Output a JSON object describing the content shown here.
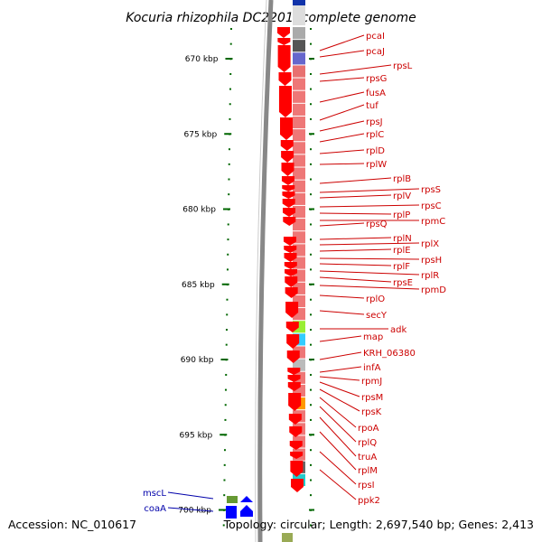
{
  "title": "Kocuria rhizophila DC2201, complete genome",
  "accession": "Accession: NC_010617",
  "meta": "Topology: circular; Length: 2,697,540 bp; Genes: 2,413",
  "colors": {
    "forward_red": "#ff0000",
    "blue_gene": "#0000ff",
    "label_red": "#cc0000",
    "label_blue": "#0000aa",
    "tick_green": "#006600",
    "backbone_gray": "#888888"
  },
  "ticks": [
    {
      "kbp": 670,
      "label": "670 kbp"
    },
    {
      "kbp": 675,
      "label": "675 kbp"
    },
    {
      "kbp": 680,
      "label": "680 kbp"
    },
    {
      "kbp": 685,
      "label": "685 kbp"
    },
    {
      "kbp": 690,
      "label": "690 kbp"
    },
    {
      "kbp": 695,
      "label": "695 kbp"
    },
    {
      "kbp": 700,
      "label": "700 kbp"
    }
  ],
  "right_labels": [
    "pcaI",
    "pcaJ",
    "rpsL",
    "rpsG",
    "fusA",
    "tuf",
    "rpsJ",
    "rplC",
    "rplD",
    "rplW",
    "rplB",
    "rpsS",
    "rplV",
    "rpsC",
    "rplP",
    "rpmC",
    "rpsQ",
    "rplN",
    "rplX",
    "rplE",
    "rpsH",
    "rplF",
    "rplR",
    "rpsE",
    "rpmD",
    "rplO",
    "secY",
    "adk",
    "map",
    "KRH_06380",
    "infA",
    "rpmJ",
    "rpsM",
    "rpsK",
    "rpoA",
    "rplQ",
    "truA",
    "rplM",
    "rpsI",
    "ppk2"
  ],
  "left_labels": [
    "mscL",
    "coaA"
  ],
  "bands": [
    {
      "color": "#aaaaaa"
    },
    {
      "color": "#555555"
    },
    {
      "color": "#6666cc"
    },
    {
      "color": "#e87070"
    },
    {
      "color": "#ee7777"
    },
    {
      "color": "#ee7777"
    },
    {
      "color": "#ee7777"
    },
    {
      "color": "#ee7777"
    },
    {
      "color": "#ee7777"
    },
    {
      "color": "#ee7777"
    },
    {
      "color": "#ee7777"
    },
    {
      "color": "#ee7777"
    },
    {
      "color": "#ee7777"
    },
    {
      "color": "#ee7777"
    },
    {
      "color": "#ee7777"
    },
    {
      "color": "#ee7777"
    },
    {
      "color": "#ee7777"
    },
    {
      "color": "#ee7777"
    },
    {
      "color": "#ee7777"
    },
    {
      "color": "#ee7777"
    },
    {
      "color": "#ee7777"
    },
    {
      "color": "#ee7777"
    },
    {
      "color": "#ee7777"
    },
    {
      "color": "#99ee33"
    },
    {
      "color": "#33ccff"
    },
    {
      "color": "#ee7777"
    },
    {
      "color": "#bbbbbb"
    },
    {
      "color": "#ee7777"
    },
    {
      "color": "#ee7777"
    },
    {
      "color": "#ff9900"
    },
    {
      "color": "#ee7777"
    },
    {
      "color": "#ee7777"
    },
    {
      "color": "#ee7777"
    },
    {
      "color": "#ee7777"
    },
    {
      "color": "#666666"
    },
    {
      "color": "#22cccc"
    }
  ]
}
